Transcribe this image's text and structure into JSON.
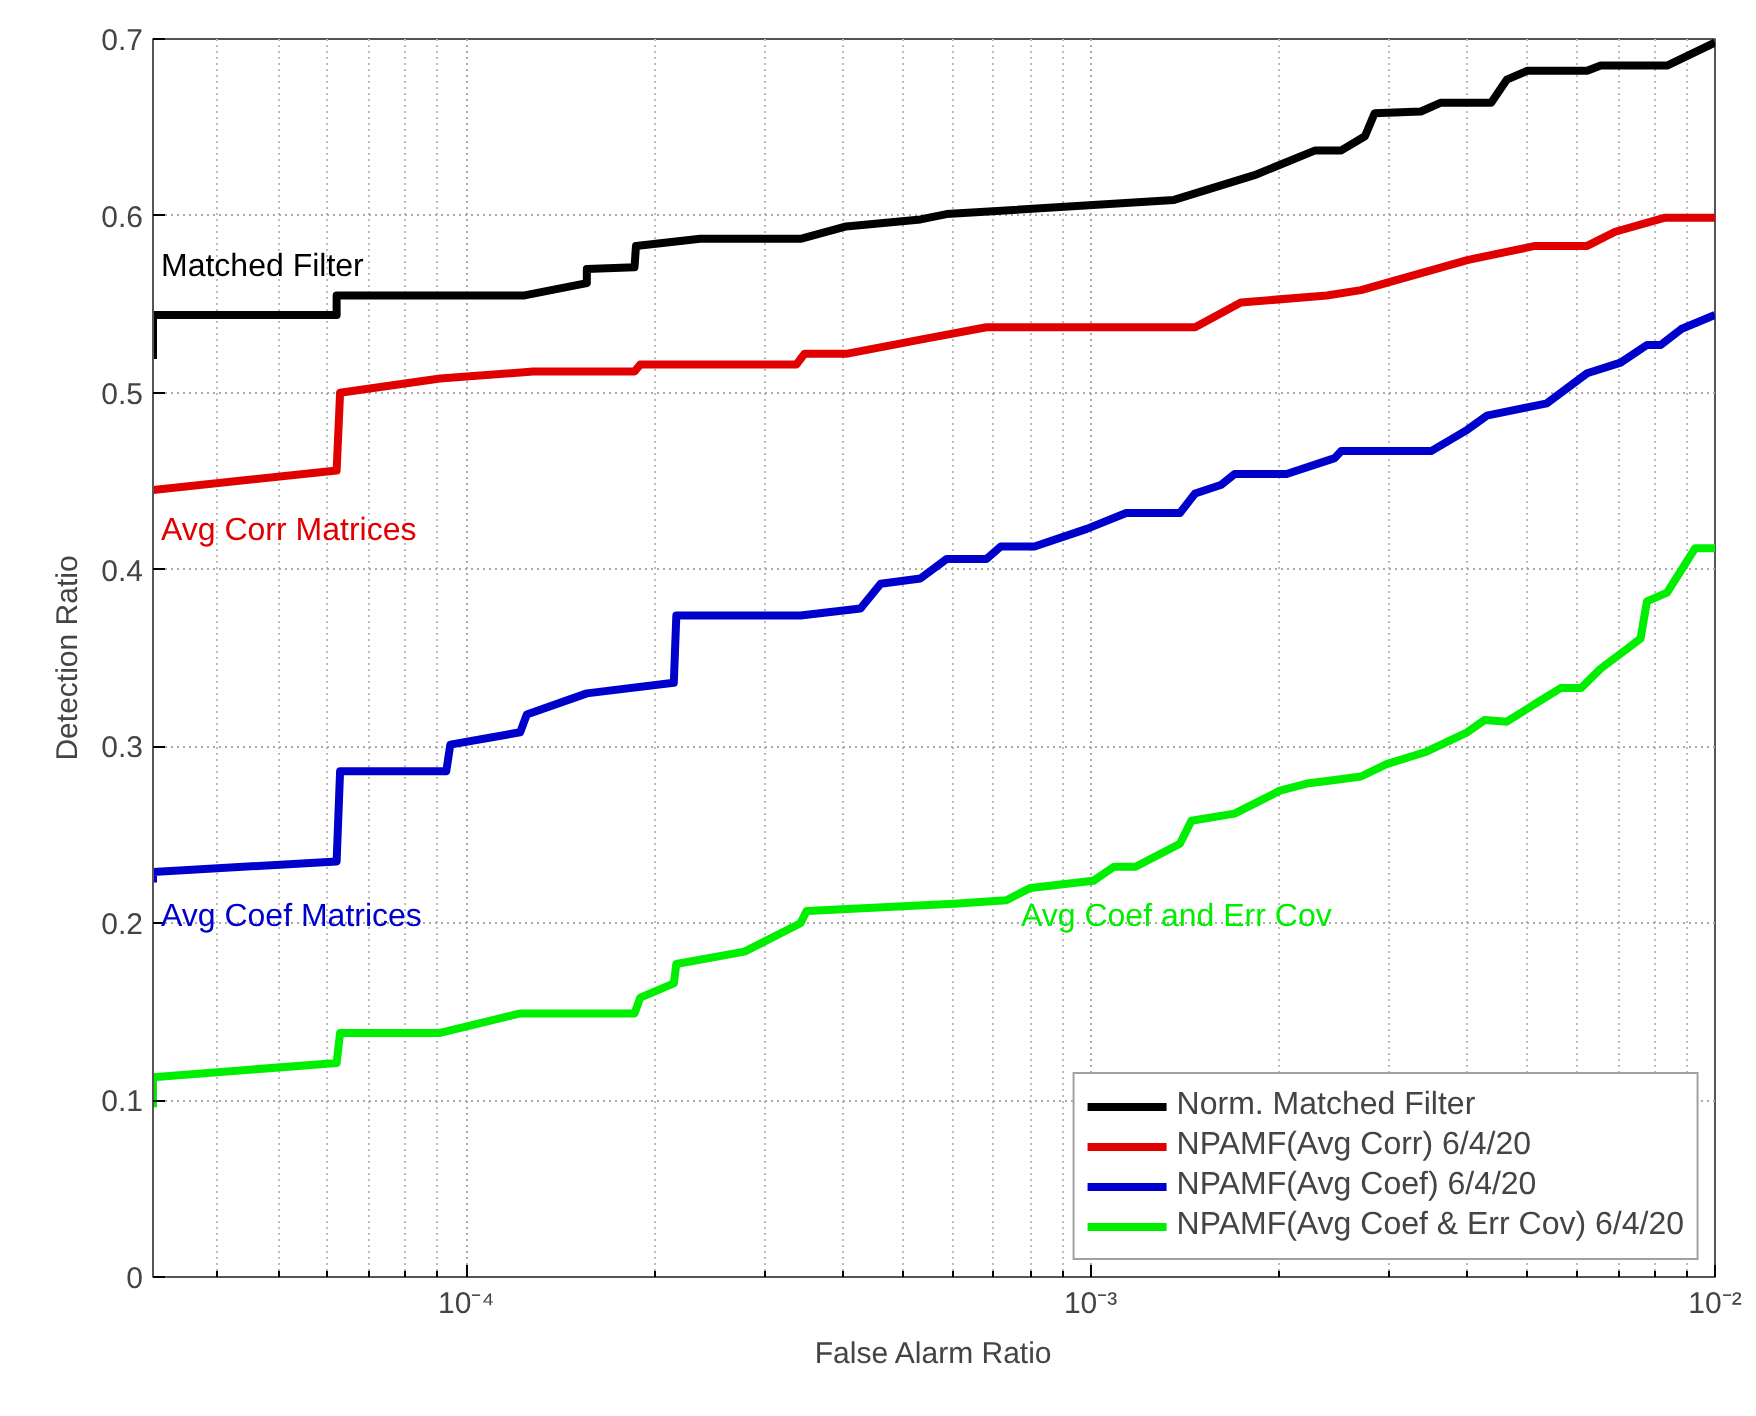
{
  "chart_data": {
    "type": "line",
    "xlabel": "False Alarm Ratio",
    "ylabel": "Detection Ratio",
    "log": "x",
    "xlim": [
      3.15e-05,
      0.01
    ],
    "ylim": [
      0,
      0.7
    ],
    "xticks": [
      {
        "value": 0.0001,
        "label": "10⁻⁴"
      },
      {
        "value": 0.001,
        "label": "10⁻³"
      },
      {
        "value": 0.01,
        "label": "10⁻²"
      }
    ],
    "yticks": [
      0,
      0.1,
      0.2,
      0.3,
      0.4,
      0.5,
      0.6,
      0.7
    ],
    "grid": true,
    "legend": "bottom right",
    "marker": "none",
    "line_style": "solid",
    "series": [
      {
        "name": "Norm. Matched Filter",
        "color": "#000000",
        "x": [
          3.15e-05,
          3.15e-05,
          6.2e-05,
          6.2e-05,
          0.000124,
          0.000156,
          0.000156,
          0.000186,
          0.000187,
          0.000237,
          0.000343,
          0.000406,
          0.000534,
          0.000588,
          0.00136,
          0.00183,
          0.00229,
          0.00252,
          0.00275,
          0.00285,
          0.00338,
          0.00364,
          0.00438,
          0.00464,
          0.005,
          0.00624,
          0.00656,
          0.00838,
          0.01
        ],
        "values": [
          0.519,
          0.544,
          0.544,
          0.555,
          0.555,
          0.562,
          0.57,
          0.571,
          0.583,
          0.587,
          0.587,
          0.594,
          0.598,
          0.601,
          0.609,
          0.623,
          0.637,
          0.637,
          0.645,
          0.658,
          0.659,
          0.664,
          0.664,
          0.677,
          0.682,
          0.682,
          0.685,
          0.685,
          0.698
        ]
      },
      {
        "name": "NPAMF(Avg Corr) 6/4/20",
        "color": "#e00000",
        "x": [
          3.15e-05,
          6.2e-05,
          6.28e-05,
          9.08e-05,
          0.000128,
          0.000186,
          0.00019,
          0.000338,
          0.000348,
          0.000406,
          0.000534,
          0.000681,
          0.00147,
          0.00174,
          0.00239,
          0.00271,
          0.00401,
          0.00515,
          0.00624,
          0.00692,
          0.00832,
          0.01
        ],
        "values": [
          0.445,
          0.456,
          0.5,
          0.508,
          0.512,
          0.512,
          0.516,
          0.516,
          0.522,
          0.522,
          0.53,
          0.537,
          0.537,
          0.551,
          0.555,
          0.558,
          0.575,
          0.583,
          0.583,
          0.591,
          0.599,
          0.599
        ]
      },
      {
        "name": "NPAMF(Avg Coef) 6/4/20",
        "color": "#0000cc",
        "x": [
          3.15e-05,
          3.15e-05,
          6.2e-05,
          6.28e-05,
          9.29e-05,
          9.43e-05,
          0.000122,
          0.000125,
          0.000156,
          0.000215,
          0.000217,
          0.000343,
          0.000428,
          0.000461,
          0.000534,
          0.000588,
          0.000681,
          0.000718,
          0.000813,
          0.000986,
          0.00114,
          0.00139,
          0.00147,
          0.00162,
          0.0017,
          0.00206,
          0.00246,
          0.00252,
          0.00351,
          0.00401,
          0.00431,
          0.00489,
          0.00538,
          0.00624,
          0.00706,
          0.00778,
          0.00819,
          0.00883,
          0.01
        ],
        "values": [
          0.223,
          0.229,
          0.235,
          0.286,
          0.286,
          0.301,
          0.308,
          0.318,
          0.33,
          0.336,
          0.374,
          0.374,
          0.378,
          0.392,
          0.395,
          0.406,
          0.406,
          0.413,
          0.413,
          0.423,
          0.432,
          0.432,
          0.443,
          0.448,
          0.454,
          0.454,
          0.463,
          0.467,
          0.467,
          0.479,
          0.487,
          0.491,
          0.494,
          0.511,
          0.517,
          0.527,
          0.527,
          0.536,
          0.544
        ]
      },
      {
        "name": "NPAMF(Avg Coef & Err Cov) 6/4/20",
        "color": "#00ee00",
        "x": [
          3.15e-05,
          3.15e-05,
          6.2e-05,
          6.28e-05,
          9.08e-05,
          0.000122,
          0.000186,
          0.00019,
          0.000215,
          0.000217,
          0.000279,
          0.000343,
          0.000351,
          0.000605,
          0.000733,
          0.000801,
          0.00101,
          0.00109,
          0.00118,
          0.00139,
          0.00145,
          0.0017,
          0.00201,
          0.00222,
          0.00246,
          0.00271,
          0.00298,
          0.00345,
          0.00401,
          0.00428,
          0.00464,
          0.00515,
          0.00566,
          0.0061,
          0.00656,
          0.00722,
          0.0076,
          0.00778,
          0.00838,
          0.00929,
          0.01
        ],
        "values": [
          0.096,
          0.113,
          0.121,
          0.138,
          0.138,
          0.149,
          0.149,
          0.158,
          0.166,
          0.177,
          0.184,
          0.2,
          0.207,
          0.211,
          0.213,
          0.22,
          0.224,
          0.232,
          0.232,
          0.245,
          0.258,
          0.262,
          0.275,
          0.279,
          0.281,
          0.283,
          0.29,
          0.297,
          0.308,
          0.315,
          0.314,
          0.324,
          0.333,
          0.333,
          0.344,
          0.355,
          0.361,
          0.382,
          0.387,
          0.412,
          0.412
        ]
      }
    ],
    "annotations": [
      "Matched Filter",
      "Avg Corr Matrices",
      "Avg Coef Matrices",
      "Avg Coef and Err Cov"
    ]
  }
}
